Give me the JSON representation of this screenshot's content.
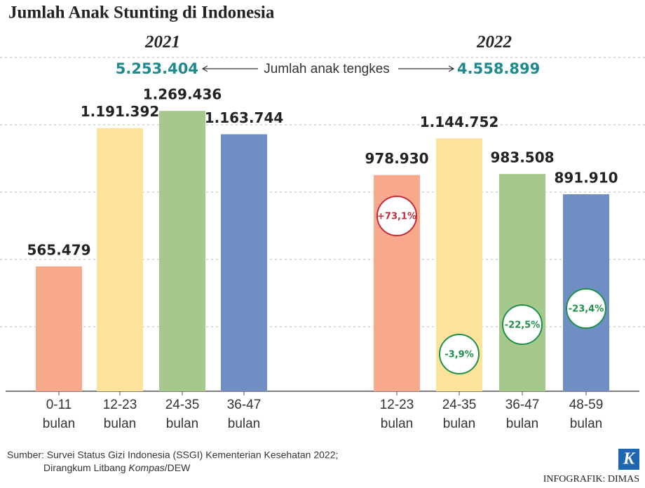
{
  "chart_data": {
    "type": "bar",
    "title": "Jumlah Anak Stunting di Indonesia",
    "annotation": "Jumlah anak tengkes",
    "ylim": [
      0,
      1400000
    ],
    "groups": [
      {
        "name": "2021",
        "total": 5253404,
        "total_label": "5.253.404",
        "categories": [
          "0-11 bulan",
          "12-23 bulan",
          "24-35 bulan",
          "36-47 bulan"
        ],
        "values": [
          565479,
          1191392,
          1269436,
          1163744
        ],
        "value_labels": [
          "565.479",
          "1.191.392",
          "1.269.436",
          "1.163.744"
        ],
        "colors": [
          "#f9a98b",
          "#fde29b",
          "#a5c98c",
          "#6f8fc4"
        ]
      },
      {
        "name": "2022",
        "total": 4558899,
        "total_label": "4.558.899",
        "categories": [
          "12-23 bulan",
          "24-35 bulan",
          "36-47 bulan",
          "48-59 bulan"
        ],
        "values": [
          978930,
          1144752,
          983508,
          891910
        ],
        "value_labels": [
          "978.930",
          "1.144.752",
          "983.508",
          "891.910"
        ],
        "colors": [
          "#f9a98b",
          "#fde29b",
          "#a5c98c",
          "#6f8fc4"
        ],
        "changes": [
          73.1,
          -3.9,
          -22.5,
          -23.4
        ],
        "change_labels": [
          "+73,1%",
          "-3,9%",
          "-22,5%",
          "-23,4%"
        ]
      }
    ],
    "source": [
      "Sumber: Survei Status Gizi Indonesia (SSGI) Kementerian Kesehatan 2022;",
      "Dirangkum Litbang ",
      "Kompas",
      "/DEW"
    ],
    "credit": "INFOGRAFIK: DIMAS",
    "logo": "K"
  }
}
